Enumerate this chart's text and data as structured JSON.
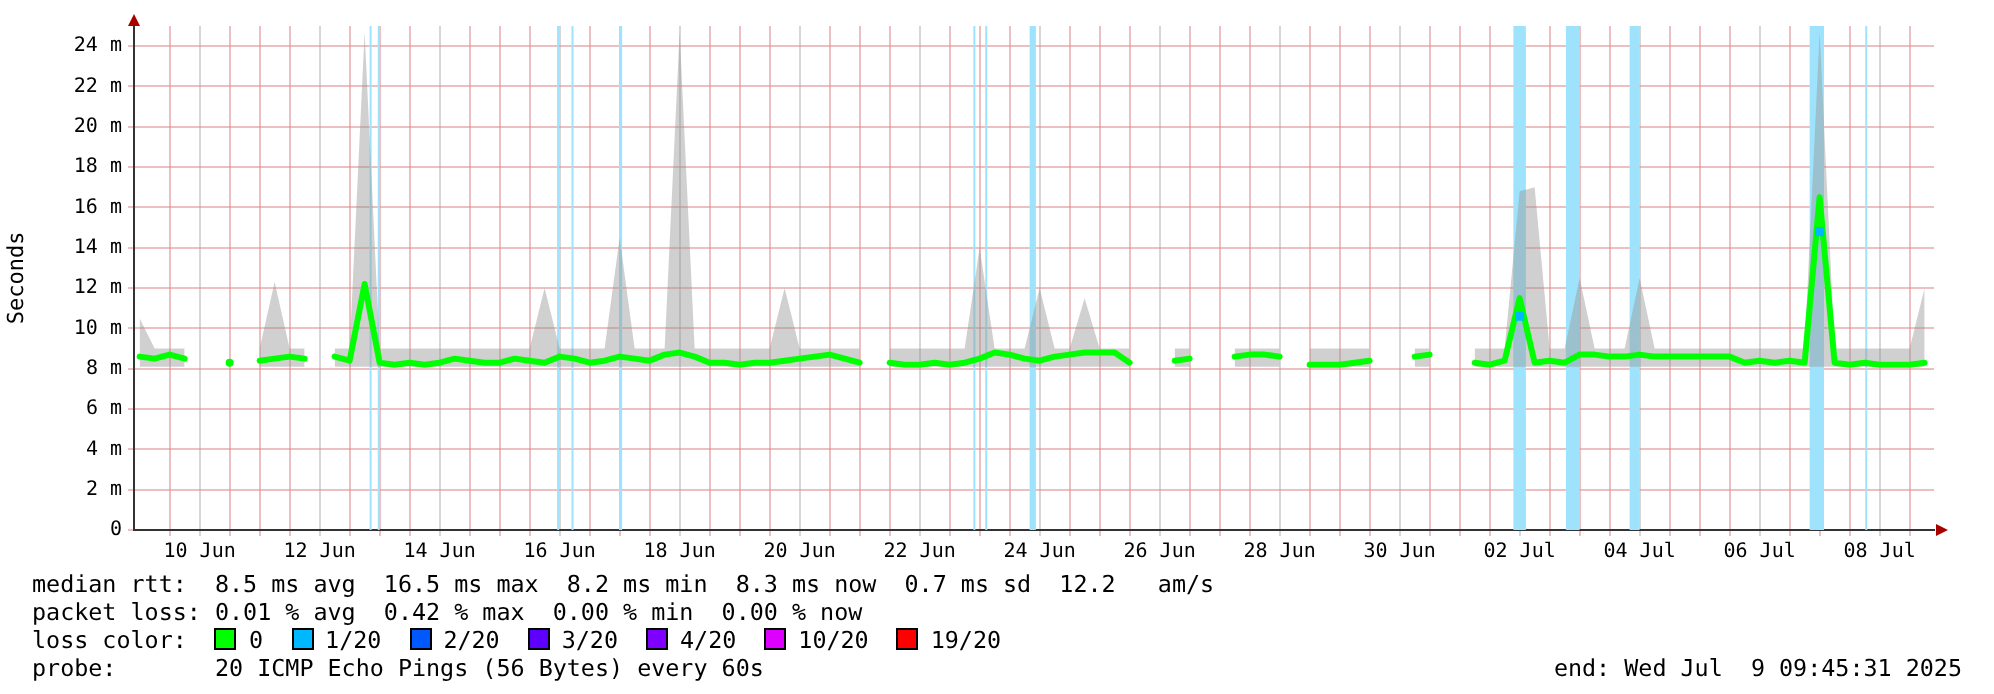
{
  "chart_data": {
    "type": "line",
    "ylabel": "Seconds",
    "legend_title": "loss color:",
    "legend": "bottom",
    "grid": true,
    "xlim": [
      "2025-06-09T09:45",
      "2025-07-09T09:45"
    ],
    "xticks": [
      {
        "value": "2025-06-10T00:00",
        "label": null
      },
      {
        "value": "2025-06-10T12:00",
        "label": "10 Jun"
      },
      {
        "value": "2025-06-11T00:00",
        "label": null
      },
      {
        "value": "2025-06-11T12:00",
        "label": null
      },
      {
        "value": "2025-06-12T00:00",
        "label": null
      },
      {
        "value": "2025-06-12T12:00",
        "label": "12 Jun"
      },
      {
        "value": "2025-06-13T00:00",
        "label": null
      },
      {
        "value": "2025-06-13T12:00",
        "label": null
      },
      {
        "value": "2025-06-14T00:00",
        "label": null
      },
      {
        "value": "2025-06-14T12:00",
        "label": "14 Jun"
      },
      {
        "value": "2025-06-15T00:00",
        "label": null
      },
      {
        "value": "2025-06-15T12:00",
        "label": null
      },
      {
        "value": "2025-06-16T00:00",
        "label": null
      },
      {
        "value": "2025-06-16T12:00",
        "label": "16 Jun"
      },
      {
        "value": "2025-06-17T00:00",
        "label": null
      },
      {
        "value": "2025-06-17T12:00",
        "label": null
      },
      {
        "value": "2025-06-18T00:00",
        "label": null
      },
      {
        "value": "2025-06-18T12:00",
        "label": "18 Jun"
      },
      {
        "value": "2025-06-19T00:00",
        "label": null
      },
      {
        "value": "2025-06-19T12:00",
        "label": null
      },
      {
        "value": "2025-06-20T00:00",
        "label": null
      },
      {
        "value": "2025-06-20T12:00",
        "label": "20 Jun"
      },
      {
        "value": "2025-06-21T00:00",
        "label": null
      },
      {
        "value": "2025-06-21T12:00",
        "label": null
      },
      {
        "value": "2025-06-22T00:00",
        "label": null
      },
      {
        "value": "2025-06-22T12:00",
        "label": "22 Jun"
      },
      {
        "value": "2025-06-23T00:00",
        "label": null
      },
      {
        "value": "2025-06-23T12:00",
        "label": null
      },
      {
        "value": "2025-06-24T00:00",
        "label": null
      },
      {
        "value": "2025-06-24T12:00",
        "label": "24 Jun"
      },
      {
        "value": "2025-06-25T00:00",
        "label": null
      },
      {
        "value": "2025-06-25T12:00",
        "label": null
      },
      {
        "value": "2025-06-26T00:00",
        "label": null
      },
      {
        "value": "2025-06-26T12:00",
        "label": "26 Jun"
      },
      {
        "value": "2025-06-27T00:00",
        "label": null
      },
      {
        "value": "2025-06-27T12:00",
        "label": null
      },
      {
        "value": "2025-06-28T00:00",
        "label": null
      },
      {
        "value": "2025-06-28T12:00",
        "label": "28 Jun"
      },
      {
        "value": "2025-06-29T00:00",
        "label": null
      },
      {
        "value": "2025-06-29T12:00",
        "label": null
      },
      {
        "value": "2025-06-30T00:00",
        "label": null
      },
      {
        "value": "2025-06-30T12:00",
        "label": "30 Jun"
      },
      {
        "value": "2025-07-01T00:00",
        "label": null
      },
      {
        "value": "2025-07-01T12:00",
        "label": null
      },
      {
        "value": "2025-07-02T00:00",
        "label": null
      },
      {
        "value": "2025-07-02T12:00",
        "label": "02 Jul"
      },
      {
        "value": "2025-07-03T00:00",
        "label": null
      },
      {
        "value": "2025-07-03T12:00",
        "label": null
      },
      {
        "value": "2025-07-04T00:00",
        "label": null
      },
      {
        "value": "2025-07-04T12:00",
        "label": "04 Jul"
      },
      {
        "value": "2025-07-05T00:00",
        "label": null
      },
      {
        "value": "2025-07-05T12:00",
        "label": null
      },
      {
        "value": "2025-07-06T00:00",
        "label": null
      },
      {
        "value": "2025-07-06T12:00",
        "label": "06 Jul"
      },
      {
        "value": "2025-07-07T00:00",
        "label": null
      },
      {
        "value": "2025-07-07T12:00",
        "label": null
      },
      {
        "value": "2025-07-08T00:00",
        "label": null
      },
      {
        "value": "2025-07-08T12:00",
        "label": "08 Jul"
      },
      {
        "value": "2025-07-09T00:00",
        "label": null
      }
    ],
    "ylim": [
      0,
      25
    ],
    "yticks": [
      0,
      {
        "value": 2,
        "label": "2 m"
      },
      {
        "value": 4,
        "label": "4 m"
      },
      {
        "value": 6,
        "label": "6 m"
      },
      {
        "value": 8,
        "label": "8 m"
      },
      {
        "value": 10,
        "label": "10 m"
      },
      {
        "value": 12,
        "label": "12 m"
      },
      {
        "value": 14,
        "label": "14 m"
      },
      {
        "value": 16,
        "label": "16 m"
      },
      {
        "value": 18,
        "label": "18 m"
      },
      {
        "value": 20,
        "label": "20 m"
      },
      {
        "value": 22,
        "label": "22 m"
      },
      {
        "value": 24,
        "label": "24 m"
      }
    ],
    "x": [
      "2025-06-09T12:00",
      "2025-06-09T18:00",
      "2025-06-10T00:00",
      "2025-06-10T06:00",
      "2025-06-10T12:00",
      "2025-06-10T18:00",
      "2025-06-11T00:00",
      "2025-06-11T06:00",
      "2025-06-11T12:00",
      "2025-06-11T18:00",
      "2025-06-12T00:00",
      "2025-06-12T06:00",
      "2025-06-12T12:00",
      "2025-06-12T18:00",
      "2025-06-13T00:00",
      "2025-06-13T06:00",
      "2025-06-13T12:00",
      "2025-06-13T18:00",
      "2025-06-14T00:00",
      "2025-06-14T06:00",
      "2025-06-14T12:00",
      "2025-06-14T18:00",
      "2025-06-15T00:00",
      "2025-06-15T06:00",
      "2025-06-15T12:00",
      "2025-06-15T18:00",
      "2025-06-16T00:00",
      "2025-06-16T06:00",
      "2025-06-16T12:00",
      "2025-06-16T18:00",
      "2025-06-17T00:00",
      "2025-06-17T06:00",
      "2025-06-17T12:00",
      "2025-06-17T18:00",
      "2025-06-18T00:00",
      "2025-06-18T06:00",
      "2025-06-18T12:00",
      "2025-06-18T18:00",
      "2025-06-19T00:00",
      "2025-06-19T06:00",
      "2025-06-19T12:00",
      "2025-06-19T18:00",
      "2025-06-20T00:00",
      "2025-06-20T06:00",
      "2025-06-20T12:00",
      "2025-06-20T18:00",
      "2025-06-21T00:00",
      "2025-06-21T06:00",
      "2025-06-21T12:00",
      "2025-06-21T18:00",
      "2025-06-22T00:00",
      "2025-06-22T06:00",
      "2025-06-22T12:00",
      "2025-06-22T18:00",
      "2025-06-23T00:00",
      "2025-06-23T06:00",
      "2025-06-23T12:00",
      "2025-06-23T18:00",
      "2025-06-24T00:00",
      "2025-06-24T06:00",
      "2025-06-24T12:00",
      "2025-06-24T18:00",
      "2025-06-25T00:00",
      "2025-06-25T06:00",
      "2025-06-25T12:00",
      "2025-06-25T18:00",
      "2025-06-26T00:00",
      "2025-06-26T06:00",
      "2025-06-26T12:00",
      "2025-06-26T18:00",
      "2025-06-27T00:00",
      "2025-06-27T06:00",
      "2025-06-27T12:00",
      "2025-06-27T18:00",
      "2025-06-28T00:00",
      "2025-06-28T06:00",
      "2025-06-28T12:00",
      "2025-06-28T18:00",
      "2025-06-29T00:00",
      "2025-06-29T06:00",
      "2025-06-29T12:00",
      "2025-06-29T18:00",
      "2025-06-30T00:00",
      "2025-06-30T06:00",
      "2025-06-30T12:00",
      "2025-06-30T18:00",
      "2025-07-01T00:00",
      "2025-07-01T06:00",
      "2025-07-01T12:00",
      "2025-07-01T18:00",
      "2025-07-02T00:00",
      "2025-07-02T06:00",
      "2025-07-02T12:00",
      "2025-07-02T18:00",
      "2025-07-03T00:00",
      "2025-07-03T06:00",
      "2025-07-03T12:00",
      "2025-07-03T18:00",
      "2025-07-04T00:00",
      "2025-07-04T06:00",
      "2025-07-04T12:00",
      "2025-07-04T18:00",
      "2025-07-05T00:00",
      "2025-07-05T06:00",
      "2025-07-05T12:00",
      "2025-07-05T18:00",
      "2025-07-06T00:00",
      "2025-07-06T06:00",
      "2025-07-06T12:00",
      "2025-07-06T18:00",
      "2025-07-07T00:00",
      "2025-07-07T06:00",
      "2025-07-07T12:00",
      "2025-07-07T18:00",
      "2025-07-08T00:00",
      "2025-07-08T06:00",
      "2025-07-08T12:00",
      "2025-07-08T18:00",
      "2025-07-09T00:00",
      "2025-07-09T06:00"
    ],
    "series": [
      {
        "name": "0",
        "color": "#00ff00",
        "values": [
          8.6,
          8.5,
          8.7,
          8.5,
          null,
          null,
          8.3,
          null,
          8.4,
          8.5,
          8.6,
          8.5,
          null,
          8.6,
          8.4,
          12.2,
          8.3,
          8.2,
          8.3,
          8.2,
          8.3,
          8.5,
          8.4,
          8.3,
          8.3,
          8.5,
          8.4,
          8.3,
          8.6,
          8.5,
          8.3,
          8.4,
          8.6,
          8.5,
          8.4,
          8.7,
          8.8,
          8.6,
          8.3,
          8.3,
          8.2,
          8.3,
          8.3,
          8.4,
          8.5,
          8.6,
          8.7,
          8.5,
          8.3,
          null,
          8.3,
          8.2,
          8.2,
          8.3,
          8.2,
          8.3,
          8.5,
          8.8,
          8.7,
          8.5,
          8.4,
          8.6,
          8.7,
          8.8,
          8.8,
          8.8,
          8.3,
          null,
          null,
          8.4,
          8.5,
          null,
          null,
          8.6,
          8.7,
          8.7,
          8.6,
          null,
          8.2,
          8.2,
          8.2,
          8.3,
          8.4,
          null,
          null,
          8.6,
          8.7,
          null,
          null,
          8.3,
          8.2,
          8.4,
          11.5,
          8.3,
          8.4,
          8.3,
          8.7,
          8.7,
          8.6,
          8.6,
          8.7,
          8.6,
          8.6,
          8.6,
          8.6,
          8.6,
          8.6,
          8.3,
          8.4,
          8.3,
          8.4,
          8.3,
          16.5,
          8.3,
          8.2,
          8.3,
          8.2,
          8.2,
          8.2,
          8.3
        ],
        "lower": [
          8.1,
          8.1,
          8.1,
          8.1,
          null,
          null,
          null,
          null,
          8.1,
          8.1,
          8.1,
          8.1,
          null,
          8.1,
          8.1,
          8.1,
          8.1,
          8.1,
          8.1,
          8.1,
          8.1,
          8.1,
          8.1,
          8.1,
          8.1,
          8.1,
          8.1,
          8.1,
          8.1,
          8.1,
          8.1,
          8.1,
          8.1,
          8.1,
          8.1,
          8.1,
          8.1,
          8.1,
          8.1,
          8.1,
          8.1,
          8.1,
          8.1,
          8.1,
          8.1,
          8.1,
          8.1,
          8.1,
          8.1,
          null,
          8.1,
          8.1,
          8.1,
          8.1,
          8.1,
          8.1,
          8.1,
          8.1,
          8.1,
          8.1,
          8.1,
          8.1,
          8.1,
          8.1,
          8.1,
          8.1,
          8.1,
          null,
          null,
          8.1,
          8.1,
          null,
          null,
          8.1,
          8.1,
          8.1,
          8.1,
          null,
          8.1,
          8.1,
          8.1,
          8.1,
          8.1,
          null,
          null,
          8.1,
          8.1,
          null,
          null,
          8.1,
          8.1,
          8.1,
          8.1,
          8.1,
          8.1,
          8.1,
          8.1,
          8.1,
          8.1,
          8.1,
          8.1,
          8.1,
          8.1,
          8.1,
          8.1,
          8.1,
          8.1,
          8.1,
          8.1,
          8.1,
          8.1,
          8.1,
          8.1,
          8.1,
          8.1,
          8.1,
          8.1,
          8.1,
          8.1,
          8.1
        ],
        "upper": [
          10.5,
          9,
          9,
          9,
          null,
          null,
          null,
          null,
          9,
          12.3,
          9,
          9,
          null,
          9,
          9,
          24.7,
          9,
          9,
          9,
          9,
          9,
          9,
          9,
          9,
          9,
          9,
          9,
          12,
          9,
          9,
          9,
          9,
          14.5,
          9,
          9,
          9,
          24.7,
          9,
          9,
          9,
          9,
          9,
          9,
          12,
          9,
          9,
          9,
          9,
          9,
          null,
          9,
          9,
          9,
          9,
          9,
          9,
          14,
          9,
          9,
          9,
          12,
          9,
          9,
          11.5,
          9,
          9,
          9,
          null,
          null,
          9,
          9,
          null,
          null,
          9,
          9,
          9,
          9,
          null,
          9,
          9,
          9,
          9,
          9,
          null,
          null,
          9,
          9,
          null,
          null,
          9,
          9,
          9,
          16.8,
          17,
          9,
          9,
          12.5,
          9,
          9,
          9,
          12.5,
          9,
          9,
          9,
          9,
          9,
          9,
          9,
          9,
          9,
          9,
          9,
          24.7,
          9,
          9,
          9,
          9,
          9,
          9,
          12
        ]
      },
      {
        "name": "1/20",
        "color": "#00b8ff",
        "type": "scatter",
        "marker": "square",
        "values": [
          null,
          null,
          null,
          null,
          null,
          null,
          null,
          null,
          null,
          null,
          null,
          null,
          null,
          null,
          null,
          null,
          null,
          null,
          null,
          null,
          null,
          null,
          null,
          null,
          null,
          null,
          null,
          null,
          null,
          null,
          null,
          null,
          null,
          null,
          null,
          null,
          null,
          null,
          null,
          null,
          null,
          null,
          null,
          null,
          null,
          null,
          null,
          null,
          null,
          null,
          null,
          null,
          null,
          null,
          null,
          null,
          null,
          null,
          null,
          null,
          null,
          null,
          null,
          null,
          null,
          null,
          null,
          null,
          null,
          null,
          null,
          null,
          null,
          null,
          null,
          null,
          null,
          null,
          null,
          null,
          null,
          null,
          null,
          null,
          null,
          null,
          null,
          null,
          null,
          null,
          null,
          null,
          10.6,
          null,
          null,
          null,
          null,
          null,
          null,
          null,
          null,
          null,
          null,
          null,
          null,
          null,
          null,
          null,
          null,
          null,
          null,
          null,
          14.8,
          null,
          null,
          null,
          null,
          null,
          null,
          null
        ]
      },
      {
        "name": "2/20",
        "color": "#0059ff",
        "type": "scatter",
        "marker": "square",
        "values": [
          null,
          null,
          null,
          null,
          null,
          null,
          null,
          null,
          null,
          null,
          null,
          null,
          null,
          null,
          null,
          null,
          null,
          null,
          null,
          null,
          null,
          null,
          null,
          null,
          null,
          null,
          null,
          null,
          null,
          null,
          null,
          null,
          null,
          null,
          null,
          null,
          null,
          null,
          null,
          null,
          null,
          null,
          null,
          null,
          null,
          null,
          null,
          null,
          null,
          null,
          null,
          null,
          null,
          null,
          null,
          null,
          null,
          null,
          null,
          null,
          null,
          null,
          null,
          null,
          null,
          null,
          null,
          null,
          null,
          null,
          null,
          null,
          null,
          null,
          null,
          null,
          null,
          null,
          null,
          null,
          null,
          null,
          null,
          null,
          null,
          null,
          null,
          null,
          null,
          null,
          null,
          null,
          null,
          null,
          null,
          null,
          null,
          null,
          null,
          null,
          null,
          null,
          null,
          null,
          null,
          null,
          null,
          null,
          null,
          null,
          null,
          null,
          null,
          null,
          null,
          null,
          null,
          null,
          null,
          null
        ]
      },
      {
        "name": "3/20",
        "color": "#5e00ff",
        "type": "scatter",
        "marker": "square",
        "values": [
          null,
          null,
          null,
          null,
          null,
          null,
          null,
          null,
          null,
          null,
          null,
          null,
          null,
          null,
          null,
          null,
          null,
          null,
          null,
          null,
          null,
          null,
          null,
          null,
          null,
          null,
          null,
          null,
          null,
          null,
          null,
          null,
          null,
          null,
          null,
          null,
          null,
          null,
          null,
          null,
          null,
          null,
          null,
          null,
          null,
          null,
          null,
          null,
          null,
          null,
          null,
          null,
          null,
          null,
          null,
          null,
          null,
          null,
          null,
          null,
          null,
          null,
          null,
          null,
          null,
          null,
          null,
          null,
          null,
          null,
          null,
          null,
          null,
          null,
          null,
          null,
          null,
          null,
          null,
          null,
          null,
          null,
          null,
          null,
          null,
          null,
          null,
          null,
          null,
          null,
          null,
          null,
          null,
          null,
          null,
          null,
          null,
          null,
          null,
          null,
          null,
          null,
          null,
          null,
          null,
          null,
          null,
          null,
          null,
          null,
          null,
          null,
          null,
          null,
          null,
          null,
          null,
          null,
          null,
          null
        ]
      },
      {
        "name": "4/20",
        "color": "#7e00ff",
        "type": "scatter",
        "marker": "square",
        "values": [
          null,
          null,
          null,
          null,
          null,
          null,
          null,
          null,
          null,
          null,
          null,
          null,
          null,
          null,
          null,
          null,
          null,
          null,
          null,
          null,
          null,
          null,
          null,
          null,
          null,
          null,
          null,
          null,
          null,
          null,
          null,
          null,
          null,
          null,
          null,
          null,
          null,
          null,
          null,
          null,
          null,
          null,
          null,
          null,
          null,
          null,
          null,
          null,
          null,
          null,
          null,
          null,
          null,
          null,
          null,
          null,
          null,
          null,
          null,
          null,
          null,
          null,
          null,
          null,
          null,
          null,
          null,
          null,
          null,
          null,
          null,
          null,
          null,
          null,
          null,
          null,
          null,
          null,
          null,
          null,
          null,
          null,
          null,
          null,
          null,
          null,
          null,
          null,
          null,
          null,
          null,
          null,
          null,
          null,
          null,
          null,
          null,
          null,
          null,
          null,
          null,
          null,
          null,
          null,
          null,
          null,
          null,
          null,
          null,
          null,
          null,
          null,
          null,
          null,
          null,
          null,
          null,
          null,
          null,
          null
        ]
      },
      {
        "name": "10/20",
        "color": "#dd00ff",
        "type": "scatter",
        "marker": "square",
        "values": [
          null,
          null,
          null,
          null,
          null,
          null,
          null,
          null,
          null,
          null,
          null,
          null,
          null,
          null,
          null,
          null,
          null,
          null,
          null,
          null,
          null,
          null,
          null,
          null,
          null,
          null,
          null,
          null,
          null,
          null,
          null,
          null,
          null,
          null,
          null,
          null,
          null,
          null,
          null,
          null,
          null,
          null,
          null,
          null,
          null,
          null,
          null,
          null,
          null,
          null,
          null,
          null,
          null,
          null,
          null,
          null,
          null,
          null,
          null,
          null,
          null,
          null,
          null,
          null,
          null,
          null,
          null,
          null,
          null,
          null,
          null,
          null,
          null,
          null,
          null,
          null,
          null,
          null,
          null,
          null,
          null,
          null,
          null,
          null,
          null,
          null,
          null,
          null,
          null,
          null,
          null,
          null,
          null,
          null,
          null,
          null,
          null,
          null,
          null,
          null,
          null,
          null,
          null,
          null,
          null,
          null,
          null,
          null,
          null,
          null,
          null,
          null,
          null,
          null,
          null,
          null,
          null,
          null,
          null,
          null
        ]
      },
      {
        "name": "19/20",
        "color": "#ff0000",
        "type": "scatter",
        "marker": "square",
        "values": [
          null,
          null,
          null,
          null,
          null,
          null,
          null,
          null,
          null,
          null,
          null,
          null,
          null,
          null,
          null,
          null,
          null,
          null,
          null,
          null,
          null,
          null,
          null,
          null,
          null,
          null,
          null,
          null,
          null,
          null,
          null,
          null,
          null,
          null,
          null,
          null,
          null,
          null,
          null,
          null,
          null,
          null,
          null,
          null,
          null,
          null,
          null,
          null,
          null,
          null,
          null,
          null,
          null,
          null,
          null,
          null,
          null,
          null,
          null,
          null,
          null,
          null,
          null,
          null,
          null,
          null,
          null,
          null,
          null,
          null,
          null,
          null,
          null,
          null,
          null,
          null,
          null,
          null,
          null,
          null,
          null,
          null,
          null,
          null,
          null,
          null,
          null,
          null,
          null,
          null,
          null,
          null,
          null,
          null,
          null,
          null,
          null,
          null,
          null,
          null,
          null,
          null,
          null,
          null,
          null,
          null,
          null,
          null,
          null,
          null,
          null,
          null,
          null,
          null,
          null,
          null,
          null,
          null,
          null,
          null
        ]
      }
    ],
    "bands": [
      {
        "axis": "x",
        "from": "2025-06-13T08:00",
        "to": "2025-06-13T08:45",
        "color": "#9ee3fb"
      },
      {
        "axis": "x",
        "from": "2025-06-13T11:15",
        "to": "2025-06-13T12:00",
        "color": "#9ee3fb"
      },
      {
        "axis": "x",
        "from": "2025-06-16T11:00",
        "to": "2025-06-16T11:45",
        "color": "#9ee3fb"
      },
      {
        "axis": "x",
        "from": "2025-06-16T16:45",
        "to": "2025-06-16T17:30",
        "color": "#9ee3fb"
      },
      {
        "axis": "x",
        "from": "2025-06-17T11:45",
        "to": "2025-06-17T13:00",
        "color": "#9ee3fb"
      },
      {
        "axis": "x",
        "from": "2025-06-23T09:30",
        "to": "2025-06-23T10:15",
        "color": "#9ee3fb"
      },
      {
        "axis": "x",
        "from": "2025-06-23T14:15",
        "to": "2025-06-23T15:00",
        "color": "#9ee3fb"
      },
      {
        "axis": "x",
        "from": "2025-06-24T08:00",
        "to": "2025-06-24T10:30",
        "color": "#9ee3fb"
      },
      {
        "axis": "x",
        "from": "2025-07-02T09:30",
        "to": "2025-07-02T14:30",
        "color": "#9ee3fb"
      },
      {
        "axis": "x",
        "from": "2025-07-03T06:30",
        "to": "2025-07-03T12:00",
        "color": "#9ee3fb"
      },
      {
        "axis": "x",
        "from": "2025-07-04T08:00",
        "to": "2025-07-04T12:00",
        "color": "#9ee3fb"
      },
      {
        "axis": "x",
        "from": "2025-07-07T08:00",
        "to": "2025-07-07T13:45",
        "color": "#9ee3fb"
      },
      {
        "axis": "x",
        "from": "2025-07-08T06:15",
        "to": "2025-07-08T07:00",
        "color": "#9ee3fb"
      }
    ],
    "annotations": [
      "median rtt:  8.5 ms avg  16.5 ms max  8.2 ms min  8.3 ms now  0.7 ms sd  12.2   am/s",
      "packet loss: 0.01 % avg  0.42 % max  0.00 % min  0.00 % now",
      "probe:       20 ICMP Echo Pings (56 Bytes) every 60s",
      "end: Wed Jul  9 09:45:31 2025"
    ]
  }
}
